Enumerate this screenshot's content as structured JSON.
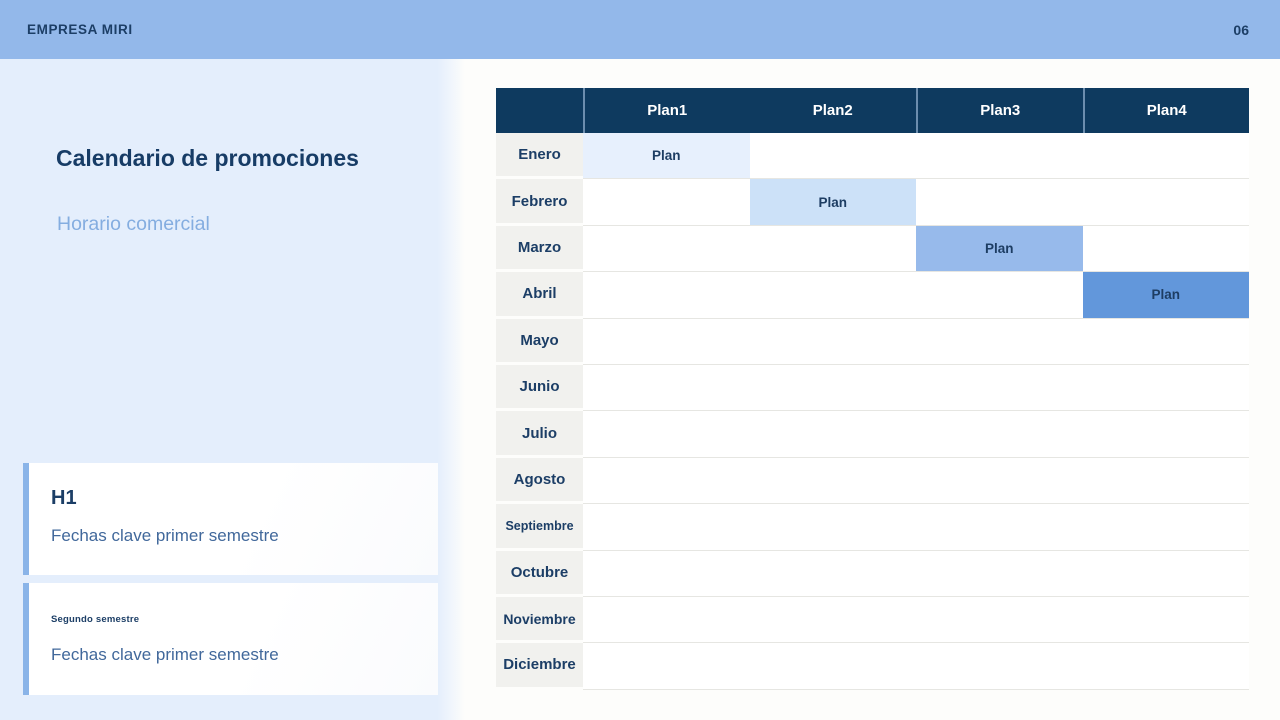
{
  "topbar": {
    "company": "EMPRESA MIRI",
    "page_number": "06"
  },
  "sidebar": {
    "title": "Calendario de promociones",
    "subtitle": "Horario comercial",
    "cards": [
      {
        "heading": "H1",
        "description": "Fechas clave primer semestre"
      },
      {
        "heading": "Segundo semestre",
        "description": "Fechas clave primer semestre"
      }
    ]
  },
  "calendar": {
    "column_headers": [
      "Plan1",
      "Plan2",
      "Plan3",
      "Plan4"
    ],
    "rows": [
      {
        "month": "Enero",
        "bar": {
          "column": "Plan1",
          "label": "Plan",
          "color": "#e7f0fd"
        }
      },
      {
        "month": "Febrero",
        "bar": {
          "column": "Plan2",
          "label": "Plan",
          "color": "#cce1f8"
        }
      },
      {
        "month": "Marzo",
        "bar": {
          "column": "Plan3",
          "label": "Plan",
          "color": "#97baeb"
        }
      },
      {
        "month": "Abril",
        "bar": {
          "column": "Plan4",
          "label": "Plan",
          "color": "#6297db"
        }
      },
      {
        "month": "Mayo",
        "bar": null
      },
      {
        "month": "Junio",
        "bar": null
      },
      {
        "month": "Julio",
        "bar": null
      },
      {
        "month": "Agosto",
        "bar": null
      },
      {
        "month": "Septiembre",
        "bar": null
      },
      {
        "month": "Octubre",
        "bar": null
      },
      {
        "month": "Noviembre",
        "bar": null
      },
      {
        "month": "Diciembre",
        "bar": null
      }
    ]
  },
  "colors": {
    "topbar_bg": "#93b8ea",
    "panel_bg": "#e4eefc",
    "page_bg": "#fdfdfb",
    "table_header_bg": "#0e3a5f",
    "month_cell_bg": "#f1f1ee",
    "row_divider": "#e6e6e2",
    "card_accent": "#8ab4e8",
    "text_dark_navy": "#1c3e66",
    "subtitle_blue": "#84ade0",
    "card_description_blue": "#41689b",
    "bar_colors": [
      "#e7f0fd",
      "#cce1f8",
      "#97baeb",
      "#6297db"
    ]
  }
}
